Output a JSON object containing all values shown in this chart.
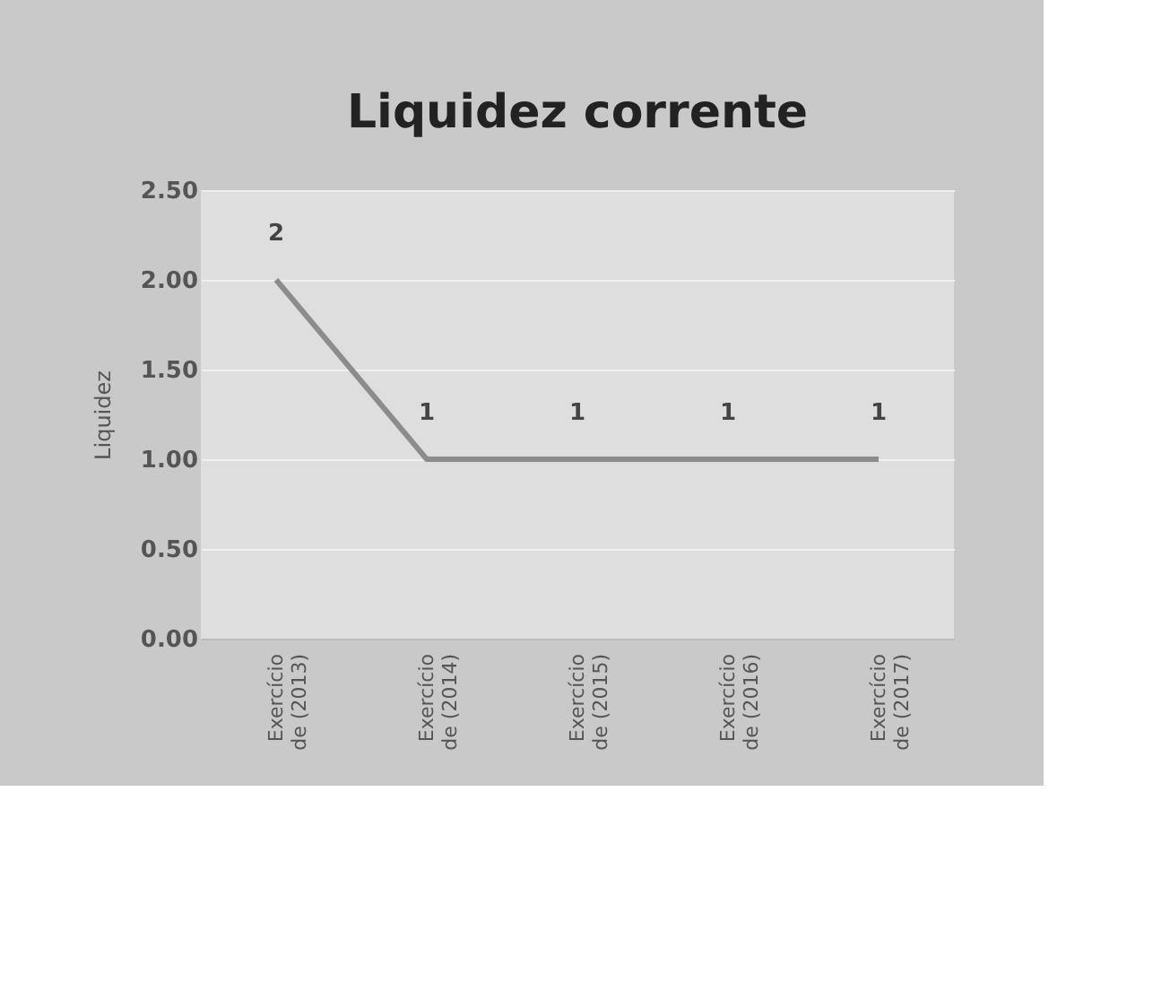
{
  "chart_data": {
    "type": "line",
    "title": "Liquidez corrente",
    "ylabel": "Liquidez",
    "categories": [
      "Exercício\nde (2013)",
      "Exercício\nde (2014)",
      "Exercício\nde (2015)",
      "Exercício\nde (2016)",
      "Exercício\nde (2017)"
    ],
    "series": [
      {
        "color": "#8c8c8c",
        "values": [
          2,
          1,
          1,
          1,
          1
        ]
      }
    ],
    "ylim": [
      0,
      2.5
    ],
    "yticks": [
      {
        "value": 0,
        "label": "0.00"
      },
      {
        "value": 0.5,
        "label": "0.50"
      },
      {
        "value": 1,
        "label": "1.00"
      },
      {
        "value": 1.5,
        "label": "1.50"
      },
      {
        "value": 2,
        "label": "2.00"
      },
      {
        "value": 2.5,
        "label": "2.50"
      }
    ],
    "grid": "y",
    "data_labels": true,
    "marker": "none",
    "line_style": "solid"
  }
}
